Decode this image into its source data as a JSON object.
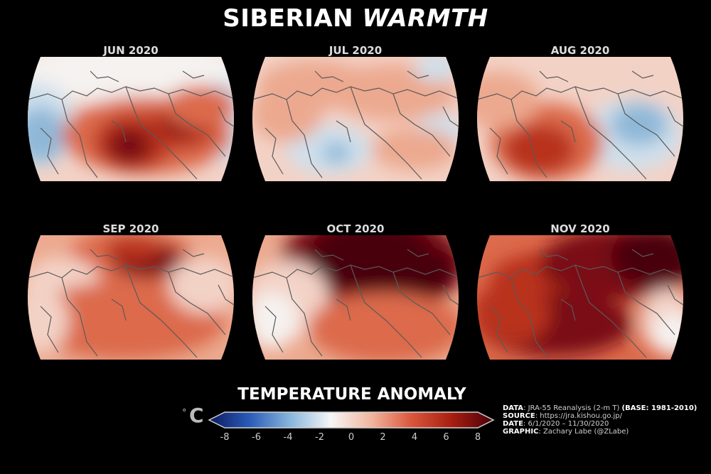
{
  "title": {
    "part1": "SIBERIAN",
    "part2": "WARMTH"
  },
  "panels": [
    {
      "label": "JUN 2020",
      "pattern": "jun"
    },
    {
      "label": "JUL 2020",
      "pattern": "jul"
    },
    {
      "label": "AUG 2020",
      "pattern": "aug"
    },
    {
      "label": "SEP 2020",
      "pattern": "sep"
    },
    {
      "label": "OCT 2020",
      "pattern": "oct"
    },
    {
      "label": "NOV 2020",
      "pattern": "nov"
    }
  ],
  "colorbar": {
    "title": "TEMPERATURE ANOMALY",
    "unit": "°",
    "unit_letter": "C",
    "ticks": [
      "-8",
      "-6",
      "-4",
      "-2",
      "0",
      "2",
      "4",
      "6",
      "8"
    ],
    "min": -8,
    "max": 8,
    "colors": [
      "#0d1a5e",
      "#2a5bb8",
      "#88b6dc",
      "#f6f6f6",
      "#f2b49e",
      "#d9553a",
      "#a51e10",
      "#4a0009"
    ]
  },
  "credits": [
    {
      "key": "DATA",
      "text": ": JRA-55 Reanalysis (2-m T) ",
      "key2": "(BASE: 1981-2010)"
    },
    {
      "key": "SOURCE",
      "text": ": https://jra.kishou.go.jp/",
      "key2": ""
    },
    {
      "key": "DATE",
      "text": ": 6/1/2020 – 11/30/2020",
      "key2": ""
    },
    {
      "key": "GRAPHIC",
      "text": ": Zachary Labe (@ZLabe)",
      "key2": ""
    }
  ]
}
